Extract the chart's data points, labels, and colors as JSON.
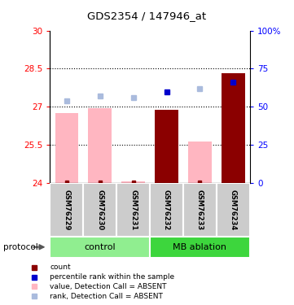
{
  "title": "GDS2354 / 147946_at",
  "samples": [
    "GSM76229",
    "GSM76230",
    "GSM76231",
    "GSM76232",
    "GSM76233",
    "GSM76234"
  ],
  "ylim_left": [
    24,
    30
  ],
  "ylim_right": [
    0,
    100
  ],
  "yticks_left": [
    24,
    25.5,
    27,
    28.5,
    30
  ],
  "yticks_right": [
    0,
    25,
    50,
    75,
    100
  ],
  "bar_values": [
    26.75,
    26.95,
    24.07,
    26.88,
    25.62,
    28.32
  ],
  "bar_absent": [
    true,
    true,
    true,
    false,
    true,
    false
  ],
  "rank_values": [
    54,
    57,
    56,
    60,
    62,
    66
  ],
  "rank_absent": [
    true,
    true,
    true,
    false,
    true,
    false
  ],
  "color_bar_absent": "#FFB6C1",
  "color_bar_present": "#8B0000",
  "color_rank_absent": "#AABBDD",
  "color_rank_present": "#0000CC",
  "color_count": "#8B0000",
  "color_group_control": "#90EE90",
  "color_group_mb": "#3DD63D",
  "bar_width": 0.7
}
